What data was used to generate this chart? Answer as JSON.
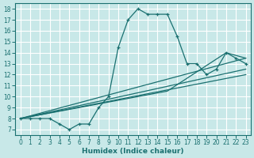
{
  "xlabel": "Humidex (Indice chaleur)",
  "xlim": [
    -0.5,
    23.5
  ],
  "ylim": [
    6.5,
    18.5
  ],
  "xticks": [
    0,
    1,
    2,
    3,
    4,
    5,
    6,
    7,
    8,
    9,
    10,
    11,
    12,
    13,
    14,
    15,
    16,
    17,
    18,
    19,
    20,
    21,
    22,
    23
  ],
  "yticks": [
    7,
    8,
    9,
    10,
    11,
    12,
    13,
    14,
    15,
    16,
    17,
    18
  ],
  "bg_color": "#c8e8e8",
  "line_color": "#1a7070",
  "grid_color": "#ffffff",
  "main_curve": {
    "x": [
      0,
      1,
      2,
      3,
      4,
      5,
      6,
      7,
      8,
      9,
      10,
      11,
      12,
      13,
      14,
      15,
      16,
      17,
      18,
      19,
      20,
      21,
      22,
      23
    ],
    "y": [
      8,
      8,
      8,
      8,
      7.5,
      7,
      7.5,
      7.5,
      9,
      10,
      14.5,
      17,
      18,
      17.5,
      17.5,
      17.5,
      15.5,
      13,
      13,
      12,
      12.5,
      14,
      13.5,
      13
    ]
  },
  "diagonal_lines": [
    {
      "x": [
        0,
        23
      ],
      "y": [
        8,
        13.5
      ]
    },
    {
      "x": [
        0,
        23
      ],
      "y": [
        8,
        12.5
      ]
    },
    {
      "x": [
        0,
        23
      ],
      "y": [
        8,
        12.0
      ]
    },
    {
      "x": [
        0,
        15,
        21,
        23
      ],
      "y": [
        8,
        10.5,
        14,
        13.5
      ]
    }
  ]
}
